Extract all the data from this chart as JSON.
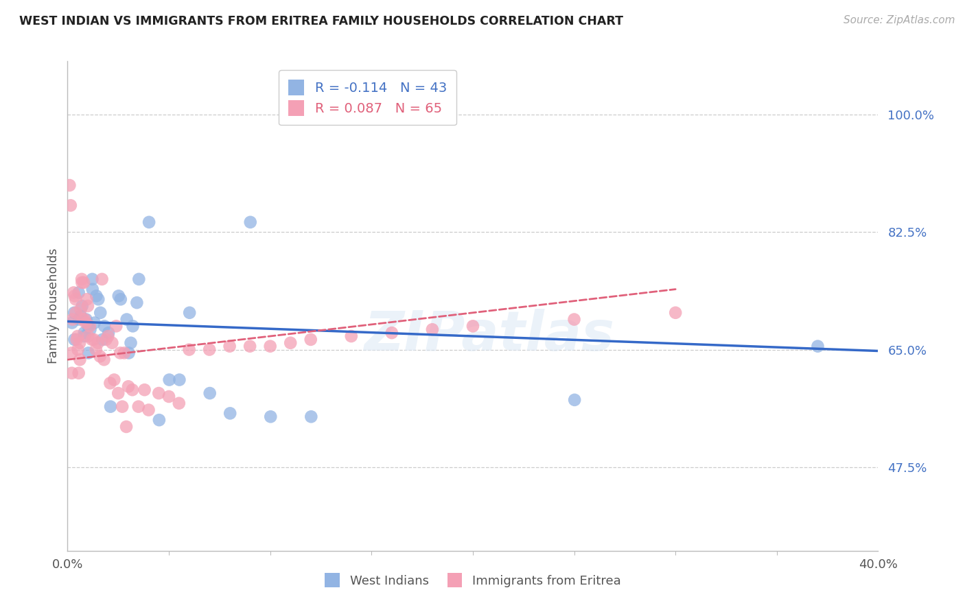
{
  "title": "WEST INDIAN VS IMMIGRANTS FROM ERITREA FAMILY HOUSEHOLDS CORRELATION CHART",
  "source": "Source: ZipAtlas.com",
  "ylabel": "Family Households",
  "west_indian_R": -0.114,
  "west_indian_N": 43,
  "eritrea_R": 0.087,
  "eritrea_N": 65,
  "west_indian_color": "#92b4e3",
  "eritrea_color": "#f4a0b5",
  "trend_west_indian_color": "#3569c8",
  "trend_eritrea_color": "#e0607a",
  "watermark": "ZIPatlas",
  "wi_trend_x0": 0.0,
  "wi_trend_y0": 69.2,
  "wi_trend_x1": 40.0,
  "wi_trend_y1": 64.8,
  "er_trend_x0": 0.0,
  "er_trend_y0": 63.5,
  "er_trend_x1": 40.0,
  "er_trend_y1": 77.5,
  "ylim_low": 35.0,
  "ylim_high": 108.0,
  "xlim_low": 0.0,
  "xlim_high": 40.0,
  "yticks": [
    47.5,
    65.0,
    82.5,
    100.0
  ],
  "ytick_labels": [
    "47.5%",
    "65.0%",
    "82.5%",
    "100.0%"
  ],
  "west_indian_x": [
    0.22,
    0.33,
    0.34,
    0.55,
    0.56,
    0.65,
    0.72,
    0.82,
    0.83,
    0.92,
    1.02,
    1.03,
    1.12,
    1.22,
    1.23,
    1.33,
    1.42,
    1.52,
    1.62,
    1.72,
    1.82,
    2.02,
    2.12,
    2.52,
    2.62,
    2.92,
    3.02,
    3.12,
    3.22,
    3.42,
    3.52,
    4.02,
    4.52,
    5.02,
    5.52,
    6.02,
    7.02,
    8.02,
    9.02,
    10.02,
    12.02,
    25.02,
    37.02
  ],
  "west_indian_y": [
    69.0,
    70.5,
    66.5,
    73.5,
    69.5,
    70.0,
    71.5,
    67.5,
    67.0,
    69.5,
    68.5,
    64.5,
    68.0,
    75.5,
    74.0,
    69.0,
    73.0,
    72.5,
    70.5,
    66.5,
    68.5,
    67.5,
    56.5,
    73.0,
    72.5,
    69.5,
    64.5,
    66.0,
    68.5,
    72.0,
    75.5,
    84.0,
    54.5,
    60.5,
    60.5,
    70.5,
    58.5,
    55.5,
    84.0,
    55.0,
    55.0,
    57.5,
    65.5
  ],
  "eritrea_x": [
    0.1,
    0.15,
    0.2,
    0.21,
    0.25,
    0.3,
    0.35,
    0.4,
    0.41,
    0.45,
    0.5,
    0.51,
    0.55,
    0.6,
    0.61,
    0.65,
    0.7,
    0.71,
    0.75,
    0.8,
    0.85,
    0.9,
    0.95,
    1.0,
    1.01,
    1.1,
    1.2,
    1.3,
    1.4,
    1.5,
    1.6,
    1.7,
    1.8,
    1.9,
    2.0,
    2.1,
    2.2,
    2.3,
    2.4,
    2.5,
    2.6,
    2.7,
    2.8,
    2.9,
    3.0,
    3.2,
    3.5,
    3.8,
    4.0,
    4.5,
    5.0,
    5.5,
    6.0,
    7.0,
    8.0,
    9.0,
    10.0,
    11.0,
    12.0,
    14.0,
    16.0,
    18.0,
    20.0,
    25.0,
    30.0
  ],
  "eritrea_y": [
    89.5,
    86.5,
    64.5,
    61.5,
    69.5,
    73.5,
    73.0,
    72.5,
    70.5,
    66.5,
    67.0,
    65.0,
    61.5,
    66.0,
    63.5,
    71.0,
    75.5,
    75.0,
    69.5,
    75.0,
    69.5,
    69.0,
    72.5,
    71.5,
    67.0,
    68.5,
    66.5,
    66.5,
    65.0,
    66.0,
    64.0,
    75.5,
    63.5,
    66.5,
    67.0,
    60.0,
    66.0,
    60.5,
    68.5,
    58.5,
    64.5,
    56.5,
    64.5,
    53.5,
    59.5,
    59.0,
    56.5,
    59.0,
    56.0,
    58.5,
    58.0,
    57.0,
    65.0,
    65.0,
    65.5,
    65.5,
    65.5,
    66.0,
    66.5,
    67.0,
    67.5,
    68.0,
    68.5,
    69.5,
    70.5
  ]
}
